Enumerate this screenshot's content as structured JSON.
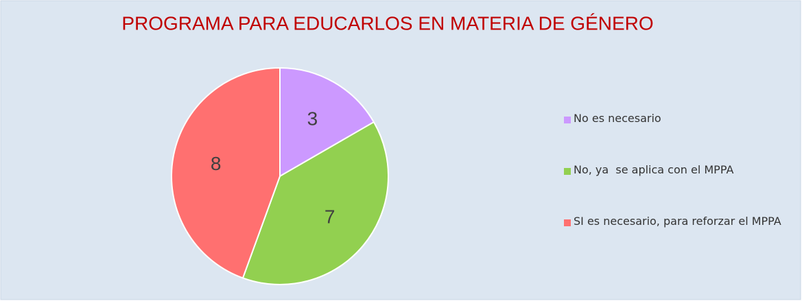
{
  "chart_data": {
    "type": "pie",
    "title": "PROGRAMA PARA EDUCARLOS EN MATERIA DE GÉNERO",
    "categories": [
      "No es necesario",
      "No, ya  se aplica con el MPPA",
      "SI es necesario, para reforzar el MPPA"
    ],
    "values": [
      3,
      7,
      8
    ],
    "colors": [
      "#cc99ff",
      "#92d050",
      "#ff7070"
    ],
    "legend": "right"
  }
}
